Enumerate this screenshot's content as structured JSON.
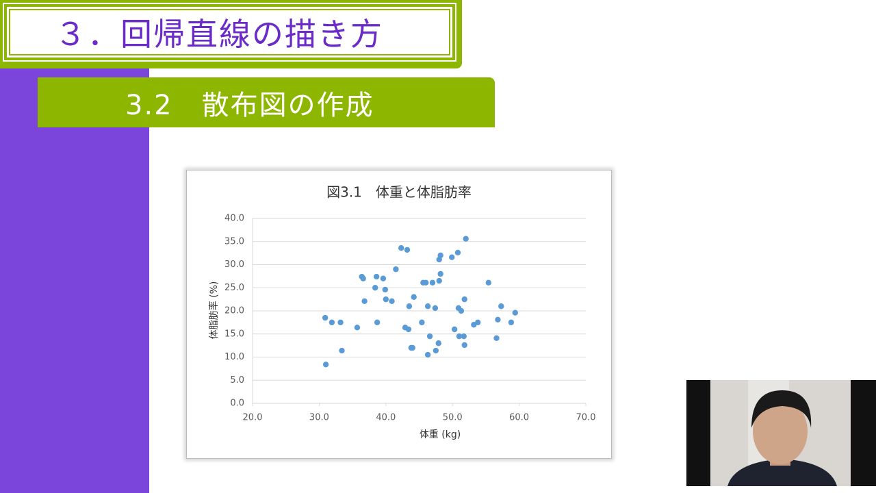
{
  "header": {
    "title": "３．回帰直線の描き方",
    "subtitle": "3.2　散布図の作成"
  },
  "chart_data": {
    "type": "scatter",
    "title": "図3.1　体重と体脂肪率",
    "x_label": "体重 (kg)",
    "y_label": "体脂肪率 (%)",
    "color": "#5b9bd5",
    "grid": true,
    "xlim": [
      20,
      70
    ],
    "ylim": [
      0,
      40
    ],
    "xticks": [
      {
        "value": 20,
        "label": "20.0"
      },
      {
        "value": 30,
        "label": "30.0"
      },
      {
        "value": 40,
        "label": "40.0"
      },
      {
        "value": 50,
        "label": "50.0"
      },
      {
        "value": 60,
        "label": "60.0"
      },
      {
        "value": 70,
        "label": "70.0"
      }
    ],
    "yticks": [
      {
        "value": 0,
        "label": "0.0"
      },
      {
        "value": 5,
        "label": "5.0"
      },
      {
        "value": 10,
        "label": "10.0"
      },
      {
        "value": 15,
        "label": "15.0"
      },
      {
        "value": 20,
        "label": "20.0"
      },
      {
        "value": 25,
        "label": "25.0"
      },
      {
        "value": 30,
        "label": "30.0"
      },
      {
        "value": 35,
        "label": "35.0"
      },
      {
        "value": 40,
        "label": "40.0"
      }
    ],
    "x": [
      30.9,
      31.0,
      31.9,
      33.2,
      33.4,
      35.7,
      36.4,
      36.6,
      36.8,
      38.4,
      38.6,
      38.7,
      39.6,
      39.9,
      40.0,
      40.9,
      41.5,
      42.3,
      42.9,
      43.2,
      43.4,
      43.5,
      43.8,
      44.0,
      44.2,
      45.4,
      45.6,
      46.0,
      46.3,
      46.3,
      46.6,
      47.0,
      47.4,
      47.5,
      47.9,
      48.0,
      48.0,
      48.2,
      48.2,
      49.9,
      50.3,
      50.8,
      50.9,
      51.0,
      51.3,
      51.7,
      51.8,
      51.8,
      52.0,
      53.2,
      53.8,
      55.4,
      56.6,
      56.8,
      57.3,
      58.8,
      59.4
    ],
    "values": [
      18.5,
      8.4,
      17.5,
      17.5,
      11.4,
      16.4,
      27.4,
      27.0,
      22.1,
      25.0,
      27.4,
      17.5,
      27.0,
      24.6,
      22.5,
      22.1,
      29.0,
      33.6,
      16.4,
      33.2,
      16.0,
      21.0,
      12.0,
      12.0,
      23.0,
      17.5,
      26.1,
      26.1,
      21.0,
      10.5,
      14.5,
      26.1,
      20.6,
      11.4,
      13.0,
      31.1,
      26.5,
      32.0,
      28.0,
      31.6,
      16.0,
      32.6,
      20.6,
      14.5,
      20.0,
      14.5,
      22.5,
      12.6,
      35.6,
      17.0,
      17.5,
      26.1,
      14.1,
      18.1,
      21.0,
      17.5,
      19.6
    ]
  }
}
